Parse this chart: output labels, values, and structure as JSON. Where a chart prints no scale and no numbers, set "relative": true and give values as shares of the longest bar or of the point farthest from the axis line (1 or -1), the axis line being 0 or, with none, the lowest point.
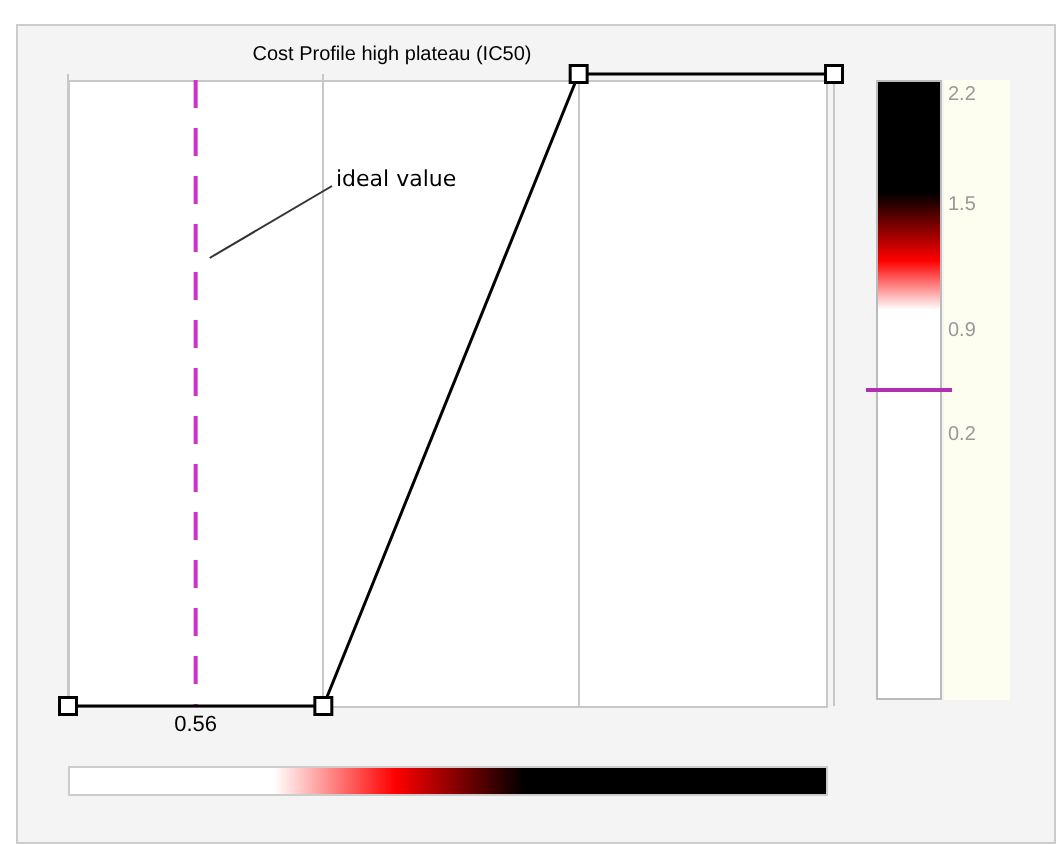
{
  "chart_data": {
    "type": "line",
    "title": "Cost Profile high plateau (IC50)",
    "categories": [
      null,
      null,
      null,
      null
    ],
    "relative": true,
    "series": [
      {
        "color": "#000000",
        "values": [
          0,
          0,
          1,
          1
        ]
      }
    ],
    "marker": "square",
    "grid": "x",
    "annotations": [
      "ideal value",
      "0.56",
      "2.2",
      "1.5",
      "0.9",
      "0.2"
    ]
  }
}
